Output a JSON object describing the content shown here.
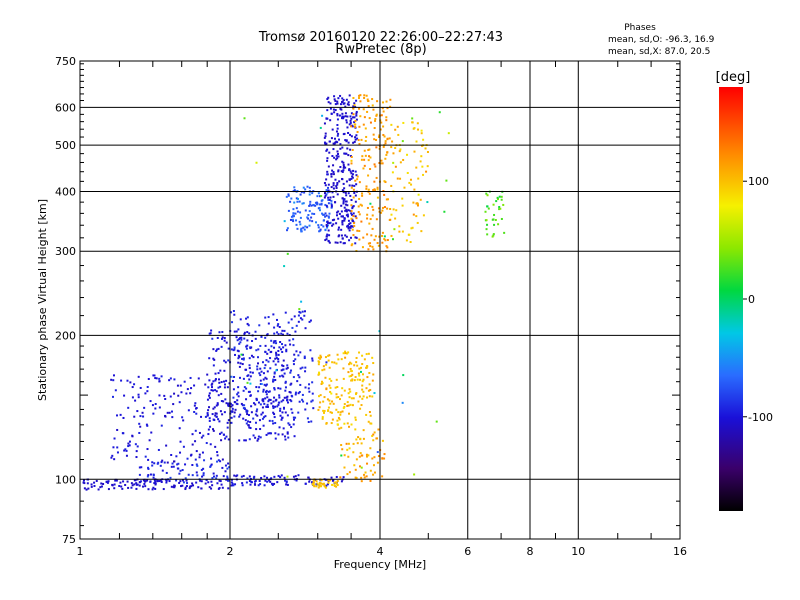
{
  "title_line1": "Tromsø 20160120 22:26:00–22:27:43",
  "title_line2": "RwPretec (8p)",
  "stats": {
    "heading": "Phases",
    "line1": "mean, sd,O: -96.3, 16.9",
    "line2": "mean, sd,X:  87.0, 20.5"
  },
  "colorbar": {
    "label": "[deg]",
    "ticks": [
      {
        "value": 100,
        "label": "100"
      },
      {
        "value": 0,
        "label": "0"
      },
      {
        "value": -100,
        "label": "-100"
      }
    ],
    "range": [
      -180,
      180
    ]
  },
  "chart_data": {
    "type": "scatter",
    "xlabel": "Frequency [MHz]",
    "ylabel": "Stationary phase Virtual Height [km]",
    "xscale": "log",
    "yscale": "log",
    "xlim": [
      1,
      16
    ],
    "ylim": [
      75,
      750
    ],
    "x_ticks": [
      {
        "value": 1,
        "label": "1"
      },
      {
        "value": 2,
        "label": "2"
      },
      {
        "value": 4,
        "label": "4"
      },
      {
        "value": 6,
        "label": "6"
      },
      {
        "value": 8,
        "label": "8"
      },
      {
        "value": 10,
        "label": "10"
      },
      {
        "value": 16,
        "label": "16"
      }
    ],
    "y_ticks": [
      {
        "value": 75,
        "label": "75"
      },
      {
        "value": 100,
        "label": "100"
      },
      {
        "value": 200,
        "label": "200"
      },
      {
        "value": 300,
        "label": "300"
      },
      {
        "value": 400,
        "label": "400"
      },
      {
        "value": 500,
        "label": "500"
      },
      {
        "value": 600,
        "label": "600"
      },
      {
        "value": 750,
        "label": "750"
      }
    ],
    "grid": true,
    "clusters": [
      {
        "fmin": 1.0,
        "fmax": 2.0,
        "hmin": 95,
        "hmax": 100,
        "phase": -105,
        "phase_sd": 8,
        "count": 120
      },
      {
        "fmin": 1.3,
        "fmax": 2.0,
        "hmin": 98,
        "hmax": 110,
        "phase": -95,
        "phase_sd": 25,
        "count": 90
      },
      {
        "fmin": 1.15,
        "fmax": 1.9,
        "hmin": 110,
        "hmax": 165,
        "phase": -100,
        "phase_sd": 15,
        "count": 160
      },
      {
        "fmin": 1.8,
        "fmax": 2.7,
        "hmin": 120,
        "hmax": 205,
        "phase": -100,
        "phase_sd": 15,
        "count": 320
      },
      {
        "fmin": 2.0,
        "fmax": 2.95,
        "hmin": 130,
        "hmax": 225,
        "phase": -95,
        "phase_sd": 15,
        "count": 220
      },
      {
        "fmin": 2.0,
        "fmax": 3.4,
        "hmin": 97,
        "hmax": 102,
        "phase": -100,
        "phase_sd": 15,
        "count": 90
      },
      {
        "fmin": 2.9,
        "fmax": 3.3,
        "hmin": 96,
        "hmax": 100,
        "phase": 100,
        "phase_sd": 15,
        "count": 40
      },
      {
        "fmin": 3.0,
        "fmax": 3.9,
        "hmin": 130,
        "hmax": 185,
        "phase": 100,
        "phase_sd": 25,
        "count": 180
      },
      {
        "fmin": 3.3,
        "fmax": 4.1,
        "hmin": 98,
        "hmax": 130,
        "phase": 110,
        "phase_sd": 30,
        "count": 70
      },
      {
        "fmin": 2.6,
        "fmax": 3.2,
        "hmin": 330,
        "hmax": 410,
        "phase": -70,
        "phase_sd": 25,
        "count": 130
      },
      {
        "fmin": 3.1,
        "fmax": 3.6,
        "hmin": 310,
        "hmax": 640,
        "phase": -105,
        "phase_sd": 10,
        "count": 330
      },
      {
        "fmin": 3.5,
        "fmax": 4.2,
        "hmin": 300,
        "hmax": 640,
        "phase": 115,
        "phase_sd": 20,
        "count": 200
      },
      {
        "fmin": 4.2,
        "fmax": 5.0,
        "hmin": 310,
        "hmax": 560,
        "phase": 100,
        "phase_sd": 30,
        "count": 80
      },
      {
        "fmin": 6.5,
        "fmax": 7.1,
        "hmin": 320,
        "hmax": 400,
        "phase": 30,
        "phase_sd": 30,
        "count": 35
      },
      {
        "fmin": 2.0,
        "fmax": 5.5,
        "hmin": 80,
        "hmax": 600,
        "phase": 0,
        "phase_sd": 120,
        "count": 40
      }
    ]
  }
}
